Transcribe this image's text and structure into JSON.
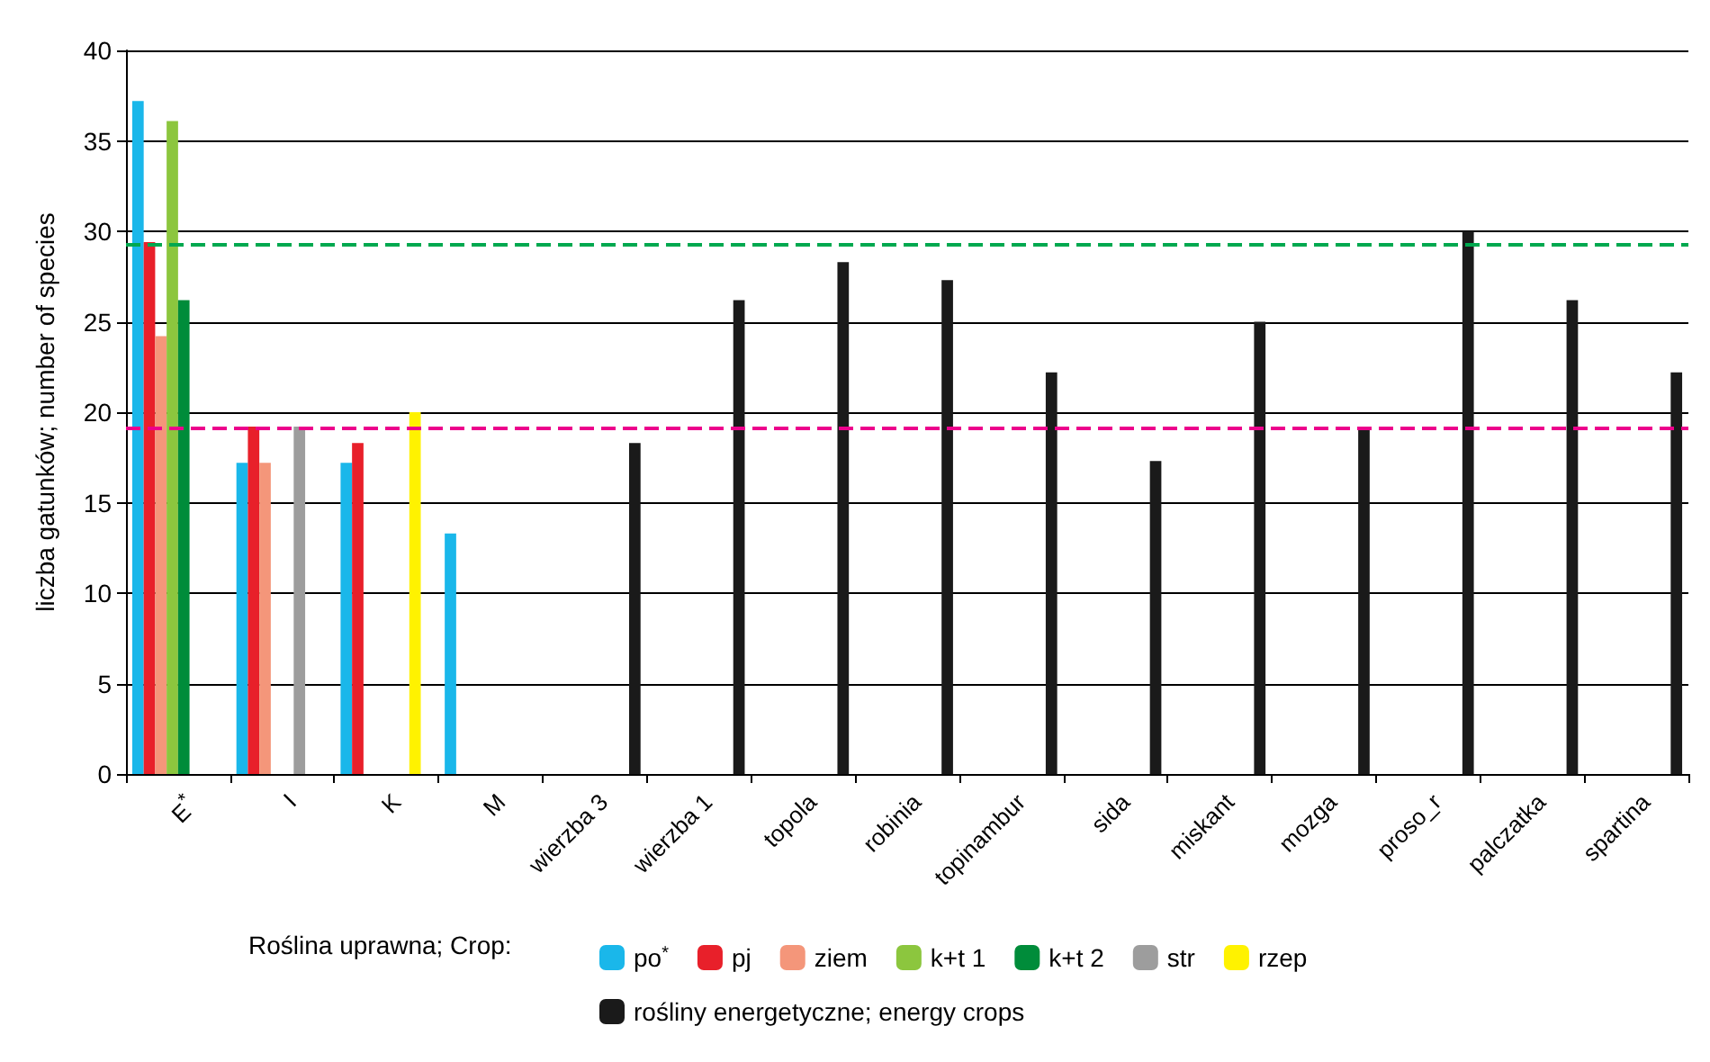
{
  "chart_data": {
    "type": "bar",
    "ylabel": "liczba gatunków; number of species",
    "legend_title": "Roślina uprawna; Crop:",
    "categories": [
      "E$^{*}$",
      "I",
      "K",
      "M",
      "wierzba 3",
      "wierzba 1",
      "topola",
      "robinia",
      "topinambur",
      "sida",
      "miskant",
      "mozga",
      "proso_r",
      "palczatka",
      "spartina"
    ],
    "series": [
      {
        "name": "po$^{*}$",
        "color": "#1ab7ea",
        "values": [
          37.2,
          17.2,
          17.2,
          13.3,
          null,
          null,
          null,
          null,
          null,
          null,
          null,
          null,
          null,
          null,
          null
        ]
      },
      {
        "name": "pj",
        "color": "#e8202a",
        "values": [
          29.4,
          19.2,
          18.3,
          null,
          null,
          null,
          null,
          null,
          null,
          null,
          null,
          null,
          null,
          null,
          null
        ]
      },
      {
        "name": "ziem",
        "color": "#f4967a",
        "values": [
          24.2,
          17.2,
          null,
          null,
          null,
          null,
          null,
          null,
          null,
          null,
          null,
          null,
          null,
          null,
          null
        ]
      },
      {
        "name": "k+t 1",
        "color": "#8cc63e",
        "values": [
          36.1,
          null,
          null,
          null,
          null,
          null,
          null,
          null,
          null,
          null,
          null,
          null,
          null,
          null,
          null
        ]
      },
      {
        "name": "k+t 2",
        "color": "#008c3a",
        "values": [
          26.2,
          null,
          null,
          null,
          null,
          null,
          null,
          null,
          null,
          null,
          null,
          null,
          null,
          null,
          null
        ]
      },
      {
        "name": "str",
        "color": "#9d9d9d",
        "values": [
          null,
          19.2,
          null,
          null,
          null,
          null,
          null,
          null,
          null,
          null,
          null,
          null,
          null,
          null,
          null
        ]
      },
      {
        "name": "rzep",
        "color": "#fff200",
        "values": [
          null,
          null,
          20,
          null,
          null,
          null,
          null,
          null,
          null,
          null,
          null,
          null,
          null,
          null,
          null
        ]
      },
      {
        "name": "rośliny energetyczne; energy crops",
        "color": "#1a1a1a",
        "values": [
          null,
          null,
          null,
          null,
          18.3,
          26.2,
          28.3,
          27.3,
          22.2,
          17.3,
          25,
          19.2,
          30,
          26.2,
          22.2
        ]
      }
    ],
    "ylim": [
      0,
      40
    ],
    "yticks": [
      0,
      5,
      10,
      15,
      20,
      25,
      30,
      35,
      40
    ],
    "grid": "y",
    "legend": "bottom",
    "ref_lines": [
      {
        "axis": "y",
        "value": 29.3,
        "color": "#00a84f",
        "line_style": "dashed"
      },
      {
        "axis": "y",
        "value": 19.1,
        "color": "#ec008c",
        "line_style": "dashed"
      }
    ]
  }
}
